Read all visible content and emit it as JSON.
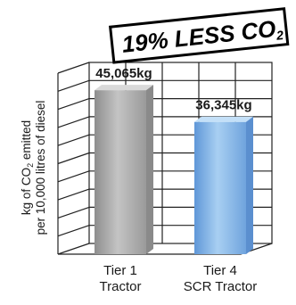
{
  "badge": {
    "text": "19% LESS CO",
    "subscript": "2"
  },
  "chart_data": {
    "type": "bar",
    "categories": [
      {
        "line1": "Tier 1",
        "line2": "Tractor"
      },
      {
        "line1": "Tier 4",
        "line2": "SCR Tractor"
      }
    ],
    "values": [
      45065,
      36345
    ],
    "value_labels": [
      "45,065kg",
      "36,345kg"
    ],
    "ylabel": {
      "line1_pre": "kg of CO",
      "line1_sub": "2",
      "line1_post": " emitted",
      "line2": "per 10,000 litres of diesel"
    },
    "ylim": [
      0,
      62000
    ],
    "grid": true,
    "colors": [
      "#a6a6a6",
      "#7fb2e6"
    ]
  }
}
